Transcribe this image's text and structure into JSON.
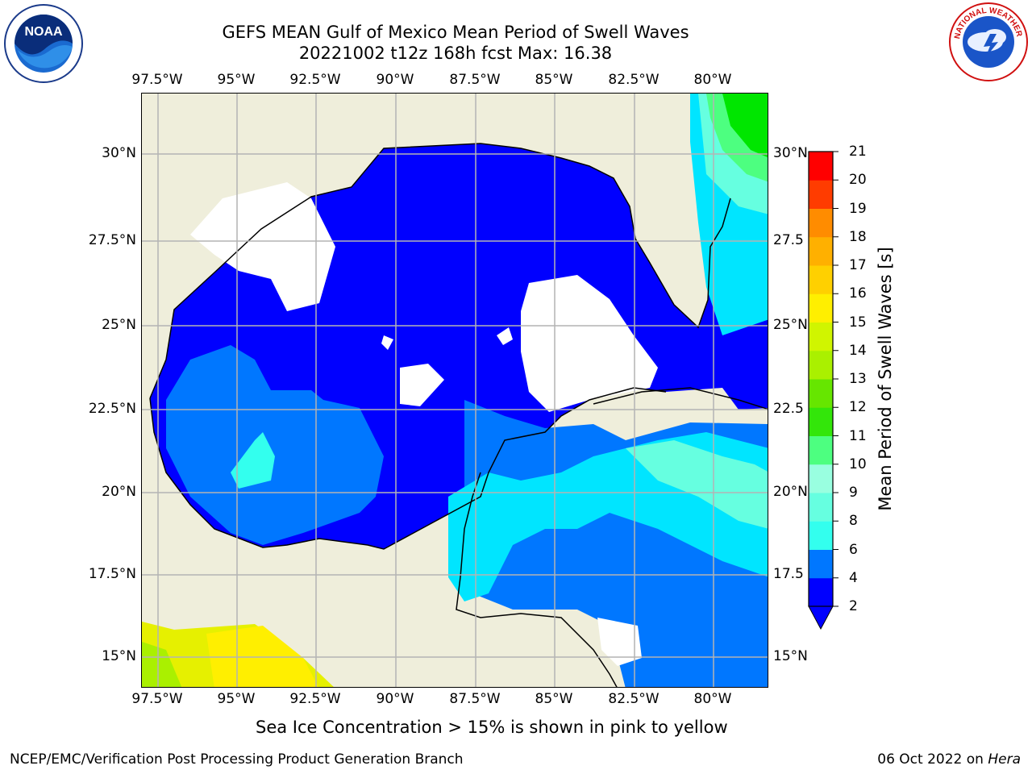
{
  "title": {
    "line1": "GEFS MEAN Gulf of Mexico Mean Period of Swell Waves",
    "line2": "20221002 t12z 168h fcst   Max: 16.38"
  },
  "axes": {
    "lon_labels": [
      "97.5°W",
      "95°W",
      "92.5°W",
      "90°W",
      "87.5°W",
      "85°W",
      "82.5°W",
      "80°W"
    ],
    "lat_labels": [
      "30°N",
      "27.5°N",
      "25°N",
      "22.5°N",
      "20°N",
      "17.5°N",
      "15°N"
    ],
    "lat_labels_right": [
      "30°N",
      "27.5",
      "25°N",
      "22.5",
      "20°N",
      "17.5",
      "15°N"
    ]
  },
  "colorbar": {
    "title": "Mean Period of Swell Waves [s]",
    "ticks": [
      "21",
      "20",
      "19",
      "18",
      "17",
      "16",
      "15",
      "14",
      "13",
      "12",
      "11",
      "10",
      "9",
      "8",
      "6",
      "4",
      "2"
    ],
    "colors": [
      "#0000ff",
      "#0077ff",
      "#00e5ff",
      "#33ffee",
      "#66ffe0",
      "#99ffe0",
      "#4dff80",
      "#00e600",
      "#33e60a",
      "#66e600",
      "#aaf000",
      "#d0f500",
      "#e6f000",
      "#ffef00",
      "#ffd000",
      "#ffb000",
      "#ff8c00",
      "#ff6600",
      "#ff3c00",
      "#ff0000"
    ]
  },
  "chart_data": {
    "type": "heatmap",
    "title": "GEFS MEAN Gulf of Mexico Mean Period of Swell Waves",
    "subtitle": "20221002 t12z 168h fcst   Max: 16.38",
    "colorbar_label": "Mean Period of Swell Waves [s]",
    "colorbar_range": [
      2,
      21
    ],
    "max_value": 16.38,
    "x_ticks": [
      "97.5°W",
      "95°W",
      "92.5°W",
      "90°W",
      "87.5°W",
      "85°W",
      "82.5°W",
      "80°W"
    ],
    "y_ticks": [
      "30°N",
      "27.5°N",
      "25°N",
      "22.5°N",
      "20°N",
      "17.5°N",
      "15°N"
    ],
    "grid": true
  },
  "note": "Sea Ice Concentration > 15% is shown in pink to yellow",
  "footer": {
    "left": "NCEP/EMC/Verification Post Processing Product Generation Branch",
    "right_date": "06 Oct 2022 on",
    "right_machine": "Hera"
  },
  "logos": {
    "noaa": "NOAA",
    "noaa_ring": "NATIONAL OCEANIC AND ATMOSPHERIC ADMINISTRATION · U.S. DEPARTMENT OF COMMERCE",
    "nws_ring": "NATIONAL WEATHER SERVICE"
  }
}
